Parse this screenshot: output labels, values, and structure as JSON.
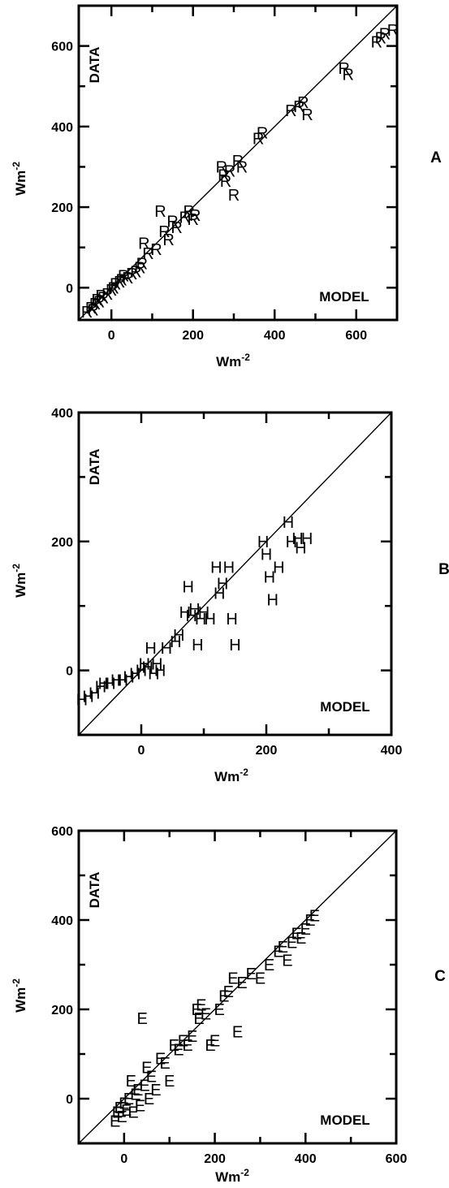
{
  "chart_data": [
    {
      "type": "scatter",
      "panel_label": "A",
      "marker": "R",
      "data_label": "DATA",
      "model_label": "MODEL",
      "xlabel": "Wm-2",
      "ylabel": "Wm-2",
      "xlim": [
        -80,
        700
      ],
      "ylim": [
        -80,
        700
      ],
      "xticks": [
        0,
        200,
        400,
        600
      ],
      "yticks": [
        0,
        200,
        400,
        600
      ],
      "x": [
        -60,
        -50,
        -45,
        -40,
        -35,
        -30,
        -25,
        -20,
        -10,
        0,
        5,
        10,
        20,
        25,
        30,
        40,
        50,
        60,
        70,
        75,
        80,
        90,
        110,
        120,
        130,
        140,
        150,
        160,
        180,
        190,
        200,
        205,
        270,
        275,
        280,
        290,
        300,
        310,
        320,
        360,
        370,
        440,
        460,
        470,
        480,
        570,
        580,
        650,
        660,
        670,
        690
      ],
      "y": [
        -60,
        -50,
        -55,
        -40,
        -30,
        -35,
        -20,
        -25,
        -15,
        -5,
        0,
        10,
        15,
        20,
        30,
        25,
        35,
        40,
        50,
        60,
        110,
        85,
        95,
        190,
        140,
        120,
        165,
        150,
        175,
        190,
        170,
        180,
        300,
        280,
        265,
        290,
        230,
        315,
        300,
        370,
        385,
        440,
        450,
        460,
        430,
        545,
        530,
        610,
        620,
        630,
        640
      ]
    },
    {
      "type": "scatter",
      "panel_label": "B",
      "marker": "H",
      "data_label": "DATA",
      "model_label": "MODEL",
      "xlabel": "Wm-2",
      "ylabel": "Wm-2",
      "xlim": [
        -100,
        400
      ],
      "ylim": [
        -100,
        400
      ],
      "xticks": [
        0,
        200,
        400
      ],
      "yticks": [
        0,
        200,
        400
      ],
      "x": [
        -95,
        -85,
        -75,
        -65,
        -60,
        -50,
        -40,
        -30,
        -20,
        -10,
        0,
        5,
        10,
        15,
        20,
        25,
        30,
        40,
        55,
        60,
        70,
        75,
        80,
        85,
        90,
        95,
        100,
        110,
        120,
        125,
        130,
        140,
        145,
        150,
        195,
        200,
        205,
        210,
        220,
        235,
        240,
        250,
        255,
        265
      ],
      "y": [
        -45,
        -40,
        -35,
        -25,
        -20,
        -20,
        -15,
        -15,
        -10,
        -5,
        0,
        10,
        5,
        35,
        -5,
        10,
        0,
        35,
        45,
        55,
        90,
        130,
        85,
        95,
        40,
        80,
        90,
        80,
        160,
        120,
        135,
        160,
        80,
        40,
        200,
        180,
        145,
        110,
        160,
        230,
        200,
        205,
        190,
        205
      ]
    },
    {
      "type": "scatter",
      "panel_label": "C",
      "marker": "E",
      "data_label": "DATA",
      "model_label": "MODEL",
      "xlabel": "Wm-2",
      "ylabel": "Wm-2",
      "xlim": [
        -100,
        600
      ],
      "ylim": [
        -100,
        600
      ],
      "xticks": [
        0,
        200,
        400,
        600
      ],
      "yticks": [
        0,
        200,
        400,
        600
      ],
      "x": [
        -20,
        -15,
        -10,
        -5,
        0,
        5,
        10,
        15,
        20,
        25,
        30,
        35,
        40,
        45,
        50,
        55,
        60,
        70,
        80,
        90,
        100,
        110,
        120,
        130,
        140,
        150,
        160,
        165,
        170,
        180,
        190,
        200,
        210,
        220,
        230,
        240,
        250,
        260,
        280,
        300,
        320,
        340,
        350,
        360,
        370,
        380,
        390,
        400,
        410,
        420
      ],
      "y": [
        -50,
        -30,
        -20,
        -40,
        -10,
        -25,
        0,
        40,
        -30,
        10,
        20,
        -15,
        180,
        30,
        70,
        0,
        50,
        20,
        90,
        80,
        40,
        120,
        110,
        130,
        120,
        140,
        200,
        180,
        210,
        190,
        120,
        130,
        200,
        230,
        240,
        270,
        150,
        260,
        280,
        270,
        300,
        330,
        340,
        310,
        350,
        370,
        360,
        380,
        400,
        410
      ]
    }
  ]
}
